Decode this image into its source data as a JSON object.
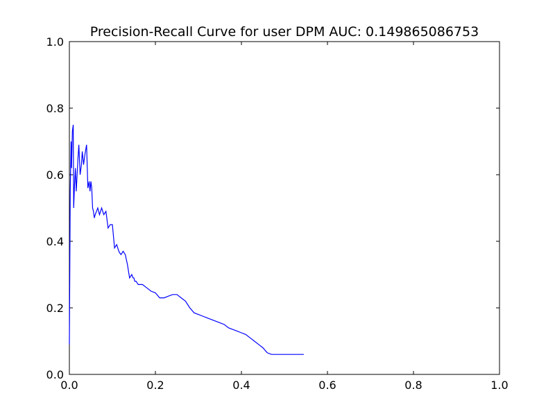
{
  "chart_data": {
    "type": "line",
    "title": "Precision-Recall Curve for user DPM AUC: 0.149865086753",
    "xlabel": "",
    "ylabel": "",
    "xlim": [
      0,
      1
    ],
    "ylim": [
      0,
      1
    ],
    "grid": false,
    "x_ticks": [
      "0.0",
      "0.2",
      "0.4",
      "0.6",
      "0.8",
      "1.0"
    ],
    "y_ticks": [
      "0.0",
      "0.2",
      "0.4",
      "0.6",
      "0.8",
      "1.0"
    ],
    "series": [
      {
        "color": "#0000ff",
        "x": [
          0.0,
          0.002,
          0.004,
          0.005,
          0.007,
          0.009,
          0.01,
          0.012,
          0.014,
          0.016,
          0.018,
          0.02,
          0.022,
          0.025,
          0.028,
          0.03,
          0.033,
          0.036,
          0.04,
          0.043,
          0.046,
          0.048,
          0.05,
          0.052,
          0.054,
          0.056,
          0.058,
          0.06,
          0.063,
          0.066,
          0.07,
          0.075,
          0.08,
          0.085,
          0.09,
          0.095,
          0.1,
          0.105,
          0.11,
          0.115,
          0.117,
          0.12,
          0.125,
          0.13,
          0.135,
          0.14,
          0.145,
          0.148,
          0.15,
          0.152,
          0.155,
          0.16,
          0.17,
          0.18,
          0.19,
          0.2,
          0.21,
          0.22,
          0.23,
          0.24,
          0.25,
          0.26,
          0.27,
          0.28,
          0.29,
          0.3,
          0.31,
          0.32,
          0.33,
          0.34,
          0.35,
          0.36,
          0.37,
          0.38,
          0.39,
          0.4,
          0.41,
          0.42,
          0.43,
          0.44,
          0.45,
          0.46,
          0.47,
          0.48,
          0.49,
          0.5,
          0.51,
          0.52,
          0.525,
          0.53,
          0.535,
          0.54,
          0.545
        ],
        "y": [
          0.09,
          0.55,
          0.7,
          0.62,
          0.73,
          0.75,
          0.5,
          0.57,
          0.62,
          0.55,
          0.6,
          0.65,
          0.69,
          0.6,
          0.63,
          0.67,
          0.63,
          0.66,
          0.69,
          0.56,
          0.58,
          0.55,
          0.58,
          0.56,
          0.5,
          0.49,
          0.47,
          0.48,
          0.49,
          0.5,
          0.48,
          0.5,
          0.48,
          0.49,
          0.44,
          0.45,
          0.45,
          0.38,
          0.39,
          0.37,
          0.365,
          0.36,
          0.37,
          0.36,
          0.33,
          0.29,
          0.3,
          0.29,
          0.29,
          0.28,
          0.28,
          0.27,
          0.27,
          0.26,
          0.25,
          0.245,
          0.23,
          0.23,
          0.235,
          0.24,
          0.24,
          0.23,
          0.22,
          0.2,
          0.185,
          0.18,
          0.175,
          0.17,
          0.165,
          0.16,
          0.155,
          0.15,
          0.14,
          0.135,
          0.13,
          0.125,
          0.12,
          0.11,
          0.1,
          0.09,
          0.08,
          0.065,
          0.06,
          0.06,
          0.06,
          0.06,
          0.06,
          0.06,
          0.06,
          0.06,
          0.06,
          0.06,
          0.06
        ]
      }
    ]
  }
}
